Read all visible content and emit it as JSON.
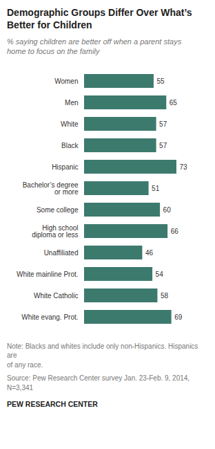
{
  "chart_data": {
    "type": "bar",
    "title": "Demographic Groups Differ Over What’s\nBetter for Children",
    "subtitle": "% saying children are better off when a parent stays\nhome to focus on the family",
    "categories": [
      "Women",
      "Men",
      "White",
      "Black",
      "Hispanic",
      "Bachelor’s degree\nor more",
      "Some college",
      "High school\ndiploma or less",
      "Unaffiliated",
      "White mainline Prot.",
      "White Catholic",
      "White evang. Prot."
    ],
    "values": [
      55,
      65,
      57,
      57,
      73,
      51,
      60,
      66,
      46,
      54,
      58,
      69
    ],
    "color": "#3d7a6e",
    "xlim": [
      0,
      85
    ],
    "orientation": "horizontal",
    "data_labels": true,
    "tick_labels": "y",
    "grid": false,
    "annotations": [
      "Note: Blacks and whites include only non-Hispanics. Hispanics are\nof any race.",
      "Source: Pew Research Center survey Jan. 23-Feb. 9, 2014,\nN=3,341",
      "PEW RESEARCH CENTER"
    ]
  }
}
